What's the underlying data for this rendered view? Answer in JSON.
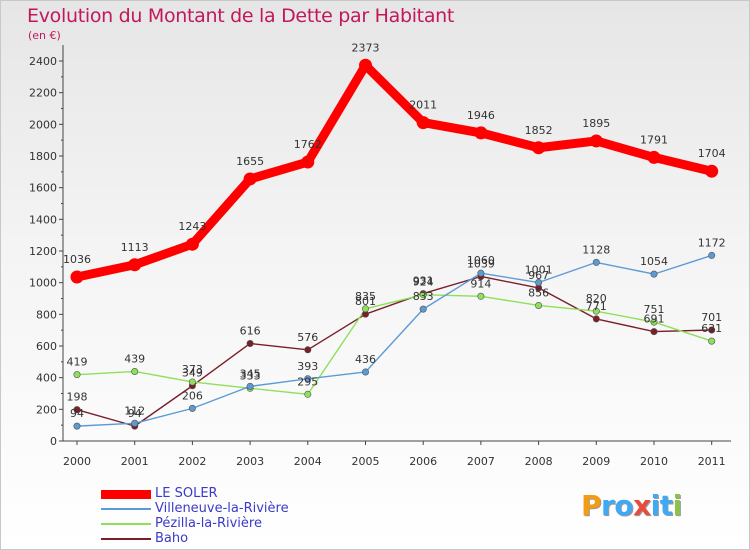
{
  "chart_data": {
    "type": "line",
    "title": "Evolution du Montant de la Dette par Habitant",
    "subtitle": "(en €)",
    "x": [
      "2000",
      "2001",
      "2002",
      "2003",
      "2004",
      "2005",
      "2006",
      "2007",
      "2008",
      "2009",
      "2010",
      "2011"
    ],
    "yticks": [
      "0",
      "200",
      "400",
      "600",
      "800",
      "1000",
      "1200",
      "1400",
      "1600",
      "1800",
      "2000",
      "2200",
      "2400"
    ],
    "ylim": [
      0,
      2400
    ],
    "grid": false,
    "legend_position": "bottom-left",
    "series": [
      {
        "name": "LE SOLER",
        "color": "#ff0000",
        "values": [
          1036,
          1113,
          1243,
          1655,
          1762,
          2373,
          2011,
          1946,
          1852,
          1895,
          1791,
          1704
        ],
        "labels": [
          "1036",
          "1113",
          "1243",
          "1655",
          "1762",
          "2373",
          "2011",
          "1946",
          "1852",
          "1895",
          "1791",
          "1704"
        ]
      },
      {
        "name": "Villeneuve-la-Rivière",
        "color": "#5b9bd5",
        "values": [
          94,
          112,
          206,
          345,
          393,
          436,
          833,
          1060,
          1001,
          1128,
          1054,
          1172
        ],
        "labels": [
          "94",
          "112",
          "206",
          "345",
          "393",
          "436",
          "833",
          "1060",
          "1001",
          "1128",
          "1054",
          "1172"
        ]
      },
      {
        "name": "Pézilla-la-Rivière",
        "color": "#8ee05a",
        "values": [
          419,
          439,
          373,
          333,
          295,
          835,
          924,
          914,
          856,
          820,
          751,
          631
        ],
        "labels": [
          "419",
          "439",
          "373",
          "333",
          "295",
          "835",
          "924",
          "914",
          "856",
          "820",
          "751",
          "631"
        ]
      },
      {
        "name": "Baho",
        "color": "#7a1f28",
        "values": [
          198,
          94,
          349,
          616,
          576,
          801,
          931,
          1039,
          967,
          771,
          691,
          701
        ],
        "labels": [
          "198",
          "94",
          "349",
          "616",
          "576",
          "801",
          "931",
          "1039",
          "967",
          "771",
          "691",
          "701"
        ]
      }
    ]
  },
  "logo": {
    "text": "Proxiti",
    "letters": [
      {
        "char": "P",
        "color": "#f39c12"
      },
      {
        "char": "r",
        "color": "#3fa9f5"
      },
      {
        "char": "o",
        "color": "#3fa9f5"
      },
      {
        "char": "x",
        "color": "#e74c3c"
      },
      {
        "char": "i",
        "color": "#3fa9f5"
      },
      {
        "char": "t",
        "color": "#3fa9f5"
      },
      {
        "char": "i",
        "color": "#8bc34a"
      }
    ]
  }
}
